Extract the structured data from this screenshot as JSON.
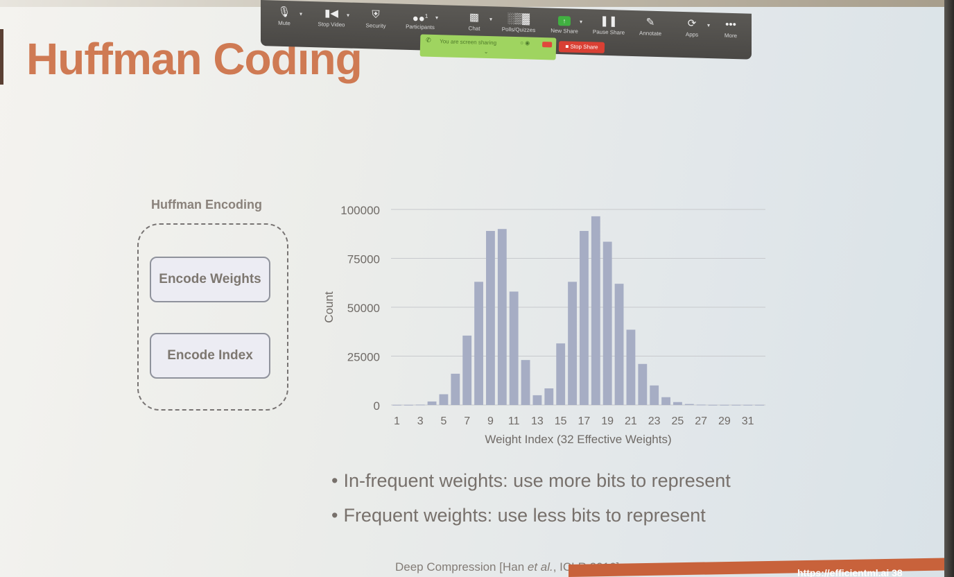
{
  "zoom_toolbar": {
    "items": [
      {
        "label": "Mute",
        "icon": "microphone-icon"
      },
      {
        "label": "Stop Video",
        "icon": "video-camera-icon"
      },
      {
        "label": "Security",
        "icon": "shield-icon"
      },
      {
        "label": "Participants",
        "icon": "people-icon",
        "count": "1"
      },
      {
        "label": "Chat",
        "icon": "chat-bubble-icon"
      },
      {
        "label": "Polls/Quizzes",
        "icon": "bar-chart-icon"
      },
      {
        "label": "New Share",
        "icon": "share-screen-icon"
      },
      {
        "label": "Pause Share",
        "icon": "pause-icon"
      },
      {
        "label": "Annotate",
        "icon": "pencil-icon"
      },
      {
        "label": "Apps",
        "icon": "apps-icon"
      },
      {
        "label": "More",
        "icon": "more-dots-icon"
      }
    ],
    "share_banner_text": "You are screen sharing",
    "stop_share_label": "Stop Share",
    "accent_color": "#9fd460",
    "stop_color": "#d94034"
  },
  "slide": {
    "title": "Huffman Coding",
    "diagram": {
      "heading": "Huffman Encoding",
      "button_weights": "Encode Weights",
      "button_index": "Encode Index"
    },
    "bullets": [
      "In-frequent weights: use more bits to represent",
      "Frequent weights: use less bits to represent"
    ],
    "citation_prefix": "Deep Compression [Han ",
    "citation_italic": "et al.",
    "citation_suffix": ", ICLR 2016]",
    "footer_url": "https://efficientml.ai   38",
    "title_color": "#cf7a53",
    "footer_color": "#c8623b"
  },
  "chart_data": {
    "type": "bar",
    "xlabel": "Weight Index (32 Effective Weights)",
    "ylabel": "Count",
    "ylim": [
      0,
      100000
    ],
    "yticks": [
      0,
      25000,
      50000,
      75000,
      100000
    ],
    "grid": true,
    "bar_color": "#a6adc4",
    "categories": [
      1,
      2,
      3,
      4,
      5,
      6,
      7,
      8,
      9,
      10,
      11,
      12,
      13,
      14,
      15,
      16,
      17,
      18,
      19,
      20,
      21,
      22,
      23,
      24,
      25,
      26,
      27,
      28,
      29,
      30,
      31,
      32
    ],
    "xtick_labels": [
      "1",
      "3",
      "5",
      "7",
      "9",
      "11",
      "13",
      "15",
      "17",
      "19",
      "21",
      "23",
      "25",
      "27",
      "29",
      "31"
    ],
    "values": [
      100,
      100,
      200,
      1800,
      5500,
      16000,
      35500,
      63000,
      89000,
      90000,
      58000,
      23000,
      5000,
      8500,
      31500,
      63000,
      89000,
      96500,
      83500,
      62000,
      38500,
      21000,
      10000,
      4000,
      1500,
      500,
      200,
      100,
      100,
      100,
      100,
      100
    ]
  }
}
